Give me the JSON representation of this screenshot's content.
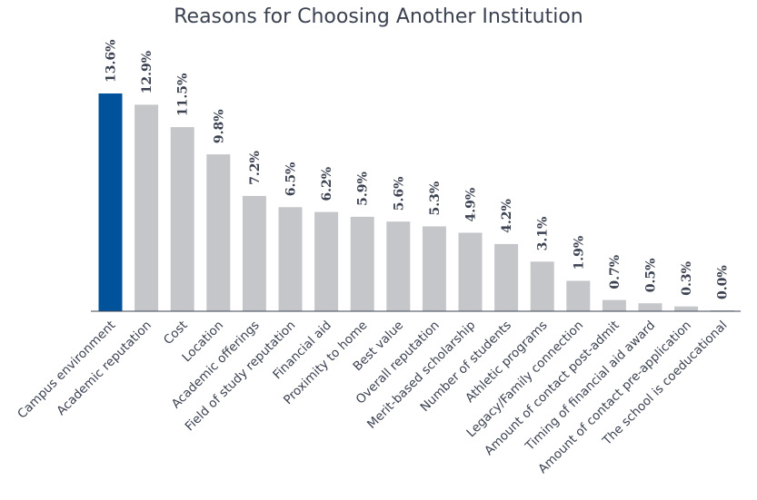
{
  "chart_data": {
    "type": "bar",
    "title": "Reasons for Choosing Another Institution",
    "categories": [
      "Campus environment",
      "Academic reputation",
      "Cost",
      "Location",
      "Academic offerings",
      "Field of study reputation",
      "Financial aid",
      "Proximity to home",
      "Best value",
      "Overall reputation",
      "Merit-based scholarship",
      "Number of students",
      "Athletic programs",
      "Legacy/Family connection",
      "Amount of contact post-admit",
      "Timing of financial aid award",
      "Amount of contact pre-application",
      "The school is coeducational"
    ],
    "values": [
      13.6,
      12.9,
      11.5,
      9.8,
      7.2,
      6.5,
      6.2,
      5.9,
      5.6,
      5.3,
      4.9,
      4.2,
      3.1,
      1.9,
      0.7,
      0.5,
      0.3,
      0.0
    ],
    "value_labels": [
      "13.6%",
      "12.9%",
      "11.5%",
      "9.8%",
      "7.2%",
      "6.5%",
      "6.2%",
      "5.9%",
      "5.6%",
      "5.3%",
      "4.9%",
      "4.2%",
      "3.1%",
      "1.9%",
      "0.7%",
      "0.5%",
      "0.3%",
      "0.0%"
    ],
    "highlight_index": 0,
    "colors": {
      "highlight": "#00539b",
      "bar": "#c4c6c9",
      "axis": "#3a4150",
      "text": "#3a4150"
    },
    "ylim": [
      0,
      13.6
    ],
    "grid": false,
    "legend": "none"
  }
}
